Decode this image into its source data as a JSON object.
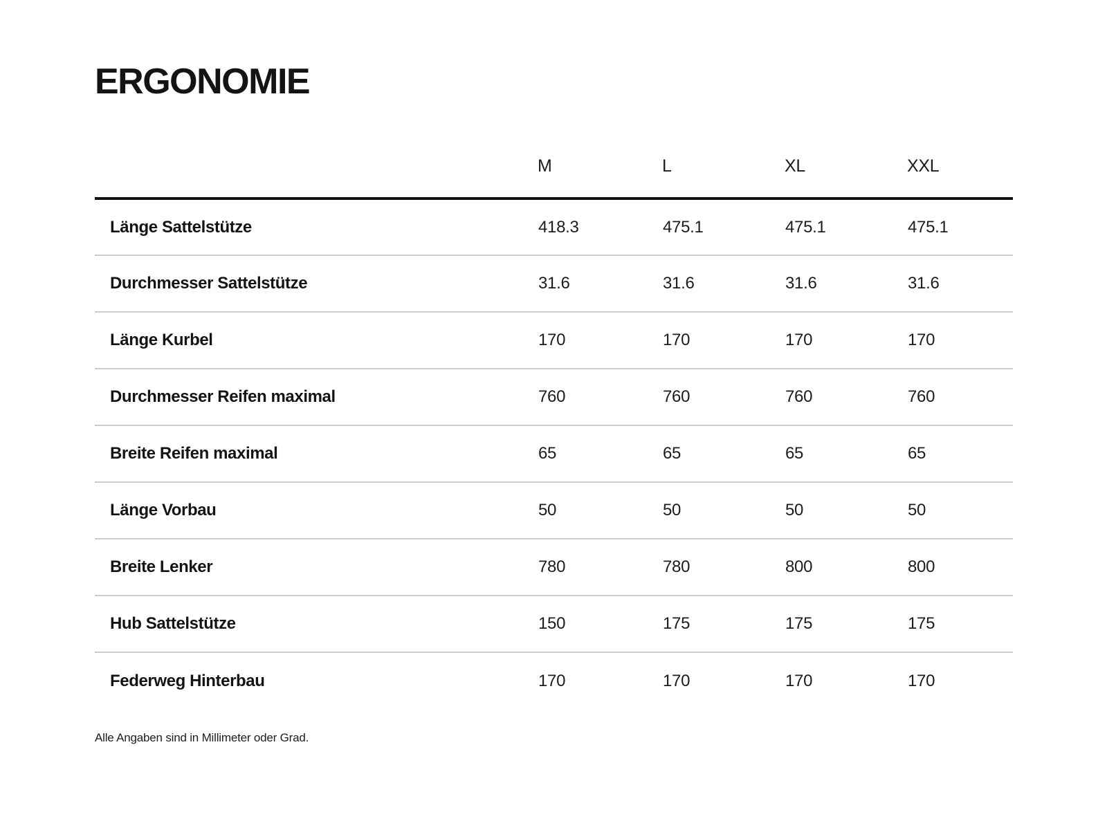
{
  "page": {
    "title": "ERGONOMIE",
    "footnote": "Alle Angaben sind in Millimeter oder Grad."
  },
  "table": {
    "columns": [
      "M",
      "L",
      "XL",
      "XXL"
    ],
    "rows": [
      {
        "label": "Länge Sattelstütze",
        "values": [
          "418.3",
          "475.1",
          "475.1",
          "475.1"
        ]
      },
      {
        "label": "Durchmesser Sattelstütze",
        "values": [
          "31.6",
          "31.6",
          "31.6",
          "31.6"
        ]
      },
      {
        "label": "Länge Kurbel",
        "values": [
          "170",
          "170",
          "170",
          "170"
        ]
      },
      {
        "label": "Durchmesser Reifen maximal",
        "values": [
          "760",
          "760",
          "760",
          "760"
        ]
      },
      {
        "label": "Breite Reifen maximal",
        "values": [
          "65",
          "65",
          "65",
          "65"
        ]
      },
      {
        "label": "Länge Vorbau",
        "values": [
          "50",
          "50",
          "50",
          "50"
        ]
      },
      {
        "label": "Breite Lenker",
        "values": [
          "780",
          "780",
          "800",
          "800"
        ]
      },
      {
        "label": "Hub Sattelstütze",
        "values": [
          "150",
          "175",
          "175",
          "175"
        ]
      },
      {
        "label": "Federweg Hinterbau",
        "values": [
          "170",
          "170",
          "170",
          "170"
        ]
      }
    ]
  },
  "colors": {
    "background": "#ffffff",
    "text": "#1c1c1c",
    "header_rule": "#121212",
    "row_separator": "#c9cdc9"
  }
}
